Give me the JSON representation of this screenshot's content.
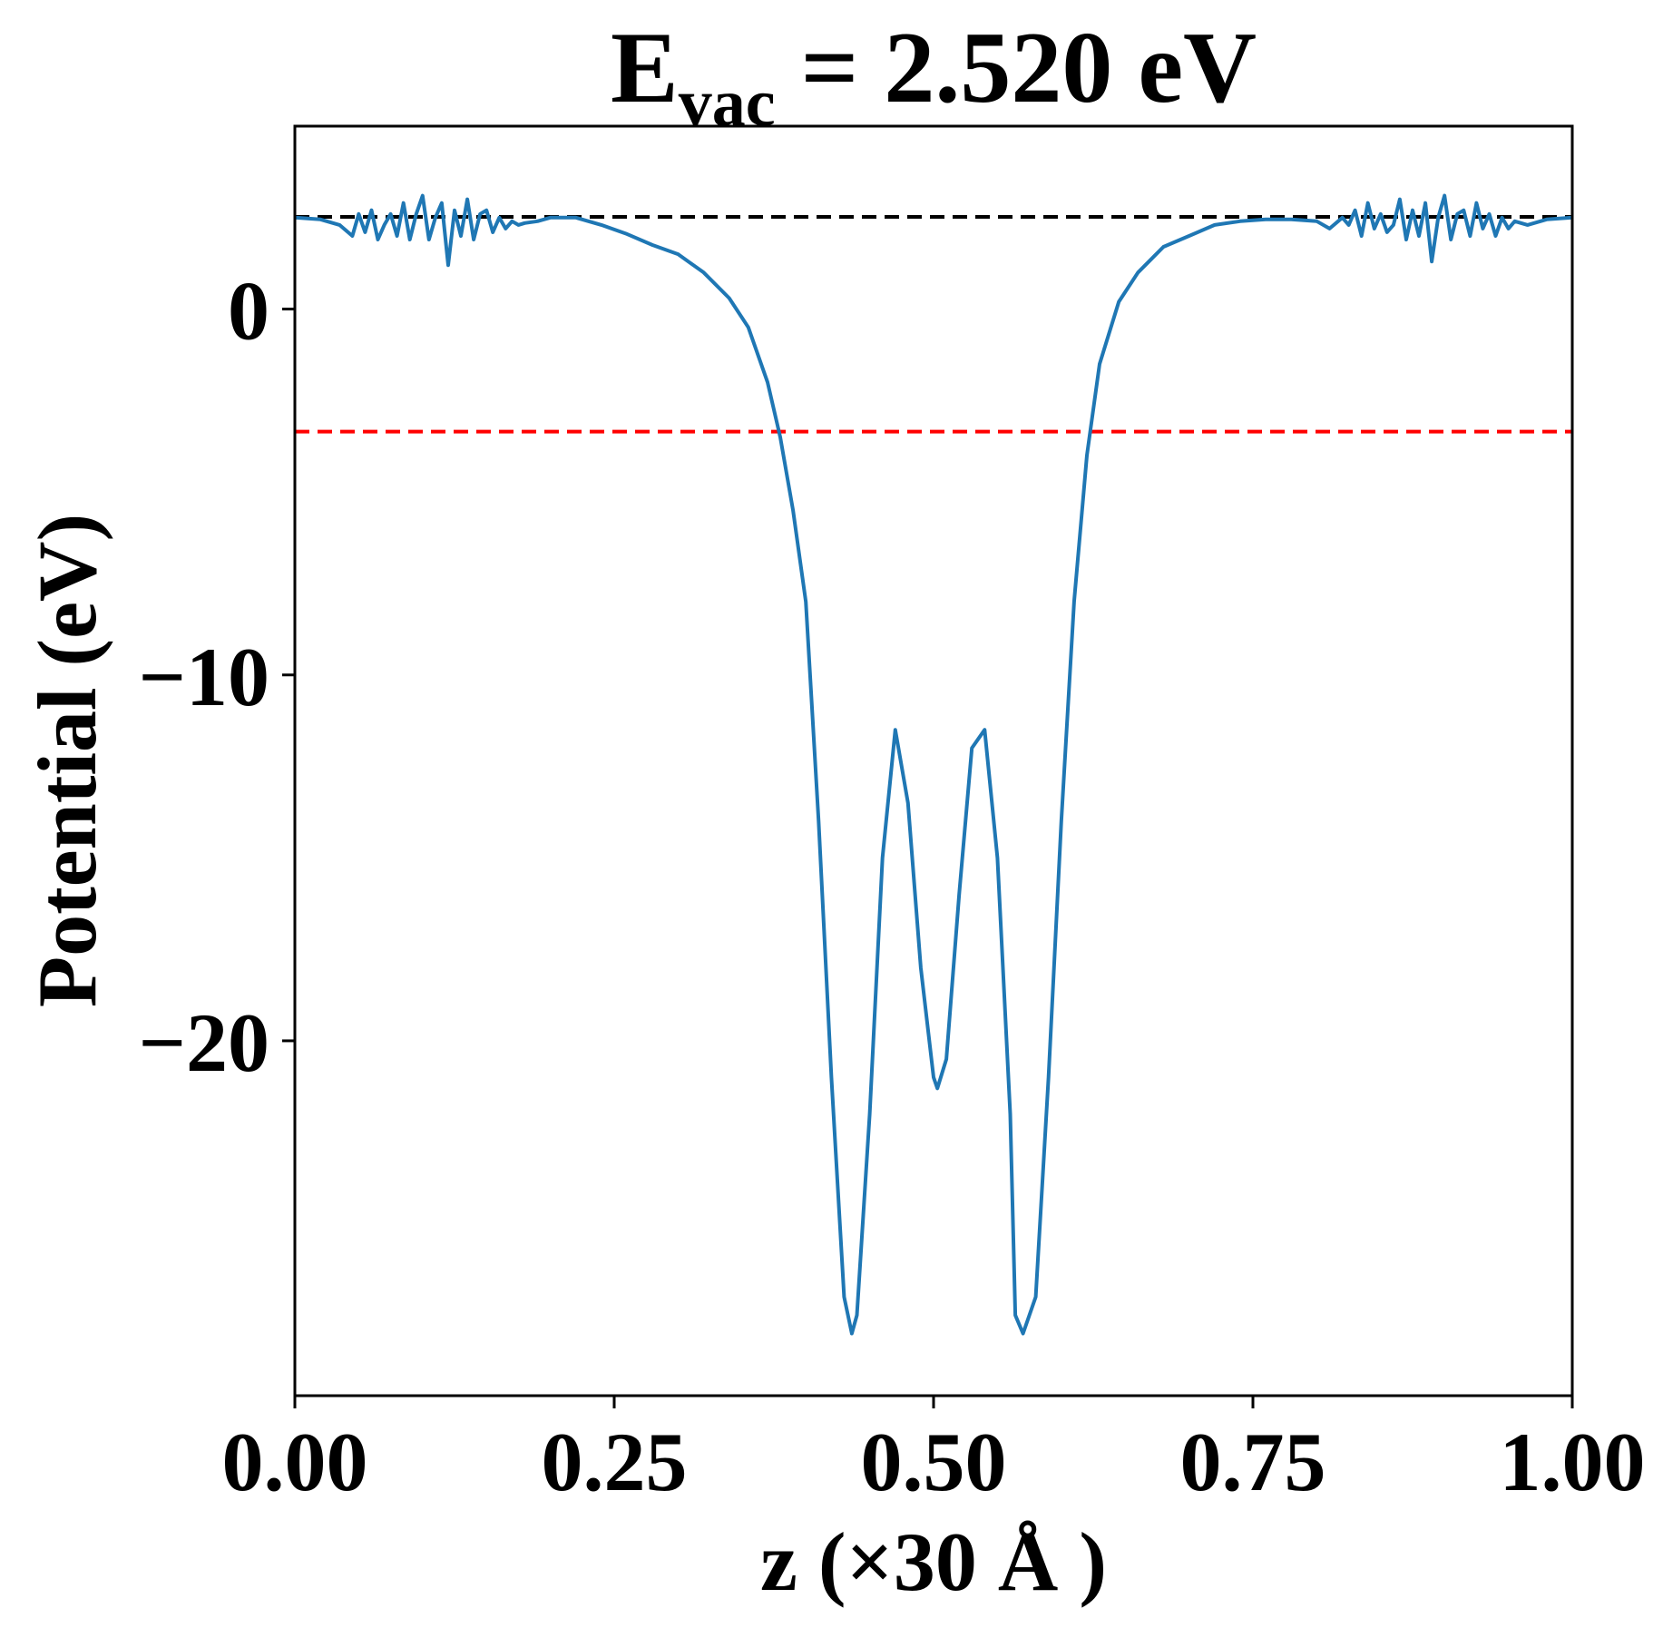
{
  "chart_data": {
    "type": "line",
    "title_main": "E",
    "title_sub": "vac",
    "title_rest": " = 2.520 eV",
    "xlabel": "z (×30 Å )",
    "ylabel": "Potential (eV)",
    "xlim": [
      0.0,
      1.0
    ],
    "ylim": [
      -29.7,
      5.0
    ],
    "xticks": [
      0.0,
      0.25,
      0.5,
      0.75,
      1.0
    ],
    "xtick_labels": [
      "0.00",
      "0.25",
      "0.50",
      "0.75",
      "1.00"
    ],
    "yticks": [
      0,
      -10,
      -20
    ],
    "ytick_labels": [
      "0",
      "−10",
      "−20"
    ],
    "grid": false,
    "legend": "none",
    "hlines": [
      {
        "y": 2.52,
        "color": "#000000",
        "style": "dashed"
      },
      {
        "y": -3.35,
        "color": "#ff0000",
        "style": "dashed"
      }
    ],
    "series": [
      {
        "color": "#1f77b4",
        "x": [
          0.0,
          0.02,
          0.035,
          0.045,
          0.05,
          0.055,
          0.06,
          0.065,
          0.07,
          0.075,
          0.08,
          0.085,
          0.09,
          0.095,
          0.1,
          0.105,
          0.11,
          0.115,
          0.12,
          0.125,
          0.13,
          0.135,
          0.14,
          0.145,
          0.15,
          0.155,
          0.16,
          0.165,
          0.17,
          0.175,
          0.18,
          0.19,
          0.2,
          0.22,
          0.24,
          0.26,
          0.28,
          0.3,
          0.32,
          0.34,
          0.355,
          0.37,
          0.38,
          0.39,
          0.4,
          0.41,
          0.42,
          0.43,
          0.436,
          0.44,
          0.45,
          0.46,
          0.47,
          0.48,
          0.49,
          0.5,
          0.503,
          0.51,
          0.52,
          0.53,
          0.54,
          0.55,
          0.56,
          0.564,
          0.57,
          0.58,
          0.59,
          0.6,
          0.61,
          0.62,
          0.63,
          0.645,
          0.66,
          0.68,
          0.7,
          0.72,
          0.74,
          0.76,
          0.78,
          0.8,
          0.81,
          0.82,
          0.825,
          0.83,
          0.835,
          0.84,
          0.845,
          0.85,
          0.855,
          0.86,
          0.865,
          0.87,
          0.875,
          0.88,
          0.885,
          0.89,
          0.895,
          0.9,
          0.905,
          0.91,
          0.915,
          0.92,
          0.925,
          0.93,
          0.935,
          0.94,
          0.945,
          0.95,
          0.955,
          0.965,
          0.98,
          1.0
        ],
        "values": [
          2.5,
          2.45,
          2.3,
          2.0,
          2.6,
          2.1,
          2.7,
          1.9,
          2.3,
          2.6,
          2.0,
          2.9,
          1.9,
          2.6,
          3.1,
          1.9,
          2.5,
          2.9,
          1.2,
          2.7,
          2.0,
          3.0,
          1.9,
          2.6,
          2.7,
          2.1,
          2.5,
          2.2,
          2.4,
          2.3,
          2.35,
          2.4,
          2.5,
          2.5,
          2.3,
          2.05,
          1.75,
          1.5,
          1.0,
          0.3,
          -0.5,
          -2.0,
          -3.5,
          -5.5,
          -8.0,
          -14.0,
          -21.0,
          -27.0,
          -28.0,
          -27.5,
          -22.0,
          -15.0,
          -11.5,
          -13.5,
          -18.0,
          -21.0,
          -21.3,
          -20.5,
          -16.0,
          -12.0,
          -11.5,
          -15.0,
          -22.0,
          -27.5,
          -28.0,
          -27.0,
          -21.0,
          -14.0,
          -8.0,
          -4.0,
          -1.5,
          0.2,
          1.0,
          1.7,
          2.0,
          2.3,
          2.4,
          2.45,
          2.45,
          2.4,
          2.2,
          2.5,
          2.3,
          2.7,
          2.0,
          2.9,
          2.2,
          2.6,
          2.1,
          2.3,
          3.0,
          1.9,
          2.7,
          2.0,
          2.9,
          1.3,
          2.5,
          3.1,
          1.9,
          2.6,
          2.7,
          2.0,
          2.9,
          2.2,
          2.6,
          2.0,
          2.5,
          2.2,
          2.4,
          2.3,
          2.45,
          2.5
        ]
      }
    ]
  }
}
